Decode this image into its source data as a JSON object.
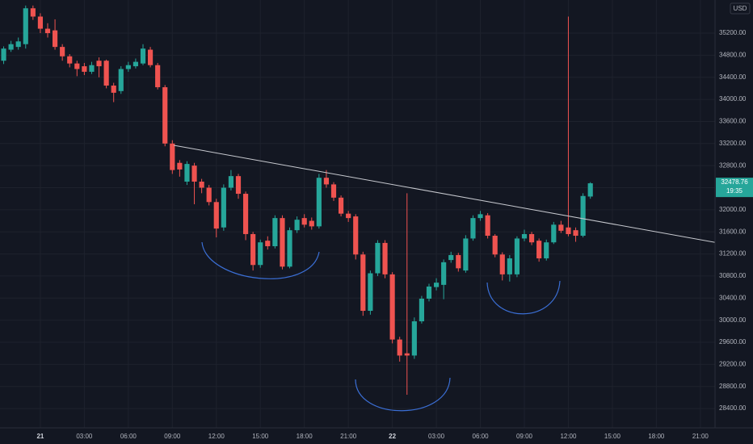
{
  "chart_data": {
    "type": "candlestick",
    "currency": "USD",
    "last_price": 32478.76,
    "countdown": "19:35",
    "x": [
      -2.5,
      -2,
      -1.5,
      -1,
      -0.5,
      0,
      0.5,
      1,
      1.5,
      2,
      2.5,
      3,
      3.5,
      4,
      4.5,
      5,
      5.5,
      6,
      6.5,
      7,
      7.5,
      8,
      8.5,
      9,
      9.5,
      10,
      10.5,
      11,
      11.5,
      12,
      12.5,
      13,
      13.5,
      14,
      14.5,
      15,
      15.5,
      16,
      16.5,
      17,
      17.5,
      18,
      18.5,
      19,
      19.5,
      20,
      20.5,
      21,
      21.5,
      22,
      22.5,
      23,
      23.5,
      24,
      24.5,
      25,
      25.5,
      26,
      26.5,
      27,
      27.5,
      28,
      28.5,
      29,
      29.5,
      30,
      30.5,
      31,
      31.5,
      32,
      32.5,
      33,
      33.5,
      34,
      34.5,
      35,
      35.5,
      36,
      36.5,
      37,
      37.5
    ],
    "open": [
      34700,
      34900,
      34950,
      35000,
      35650,
      35500,
      35280,
      35250,
      34950,
      34780,
      34650,
      34600,
      34500,
      34700,
      34700,
      34250,
      34150,
      34550,
      34600,
      34650,
      34900,
      34620,
      34220,
      33200,
      32850,
      32510,
      32800,
      32510,
      32400,
      32140,
      31680,
      32400,
      32610,
      32290,
      31560,
      31000,
      31440,
      31340,
      31850,
      30970,
      31630,
      31850,
      31800,
      31700,
      32580,
      32460,
      32220,
      31930,
      31880,
      31190,
      30170,
      30850,
      31400,
      30830,
      29650,
      29400,
      29360,
      29980,
      30390,
      30600,
      30640,
      31090,
      31180,
      30900,
      31480,
      31850,
      31900,
      31530,
      31190,
      30830,
      30830,
      31480,
      31560,
      31440,
      31120,
      31410,
      31730,
      31680,
      31630,
      31530,
      32240
    ],
    "high": [
      34960,
      35060,
      35120,
      35700,
      35700,
      35560,
      35380,
      35450,
      35000,
      34820,
      34700,
      34660,
      34680,
      34760,
      34720,
      34300,
      34600,
      34680,
      34740,
      35000,
      34950,
      34660,
      34260,
      33260,
      32900,
      32880,
      32850,
      32560,
      32450,
      32200,
      32460,
      32720,
      32650,
      32330,
      31600,
      31460,
      31520,
      31900,
      31900,
      31680,
      31880,
      31920,
      31860,
      32650,
      32720,
      32500,
      32260,
      31980,
      31920,
      31240,
      30900,
      31450,
      31450,
      30870,
      29700,
      32300,
      30050,
      30440,
      30660,
      30760,
      31100,
      31240,
      31220,
      31540,
      31900,
      31980,
      31940,
      31560,
      31230,
      31180,
      31520,
      31640,
      31600,
      31480,
      31460,
      31780,
      31800,
      35500,
      31680,
      32300,
      32500
    ],
    "low": [
      34640,
      34860,
      34900,
      34920,
      35440,
      35200,
      35120,
      34900,
      34700,
      34580,
      34420,
      34440,
      34460,
      34400,
      34200,
      33950,
      34100,
      34500,
      34560,
      34620,
      34580,
      34180,
      33150,
      32650,
      32600,
      32450,
      32100,
      32300,
      32080,
      31500,
      31620,
      32350,
      32200,
      31450,
      30900,
      30950,
      31280,
      31300,
      30920,
      30940,
      31580,
      31680,
      31640,
      31660,
      32400,
      32160,
      31880,
      31780,
      31100,
      30080,
      30100,
      30800,
      30760,
      29580,
      29250,
      28650,
      29300,
      29940,
      30340,
      30540,
      30380,
      31040,
      30880,
      30860,
      31440,
      31800,
      31480,
      31140,
      30720,
      30700,
      30780,
      31430,
      31360,
      31060,
      31080,
      31380,
      31580,
      31520,
      31420,
      31500,
      32200
    ],
    "close": [
      34920,
      35000,
      35050,
      35650,
      35500,
      35280,
      35200,
      34950,
      34780,
      34650,
      34550,
      34500,
      34620,
      34600,
      34250,
      34120,
      34550,
      34620,
      34680,
      34920,
      34620,
      34220,
      33200,
      32720,
      32730,
      32830,
      32510,
      32400,
      32140,
      31660,
      32400,
      32610,
      32290,
      31560,
      31000,
      31410,
      31340,
      31850,
      30970,
      31630,
      31820,
      31730,
      31700,
      32580,
      32460,
      32220,
      31930,
      31850,
      31190,
      30170,
      30850,
      31400,
      30830,
      29650,
      29360,
      29360,
      29980,
      30390,
      30610,
      30680,
      31050,
      31180,
      30940,
      31480,
      31850,
      31920,
      31530,
      31190,
      30830,
      31120,
      31480,
      31560,
      31410,
      31120,
      31410,
      31730,
      31620,
      31560,
      31530,
      32250,
      32480
    ],
    "up_color": "#26a69a",
    "down_color": "#ef5350",
    "grid": true,
    "xlim": [
      -2.75,
      46
    ],
    "ylim": [
      28050,
      35800
    ],
    "xticks": [
      {
        "value": 0,
        "label": "21"
      },
      {
        "value": 3,
        "label": "03:00"
      },
      {
        "value": 6,
        "label": "06:00"
      },
      {
        "value": 9,
        "label": "09:00"
      },
      {
        "value": 12,
        "label": "12:00"
      },
      {
        "value": 15,
        "label": "15:00"
      },
      {
        "value": 18,
        "label": "18:00"
      },
      {
        "value": 21,
        "label": "21:00"
      },
      {
        "value": 24,
        "label": "22"
      },
      {
        "value": 27,
        "label": "03:00"
      },
      {
        "value": 30,
        "label": "06:00"
      },
      {
        "value": 33,
        "label": "09:00"
      },
      {
        "value": 36,
        "label": "12:00"
      },
      {
        "value": 39,
        "label": "15:00"
      },
      {
        "value": 42,
        "label": "18:00"
      },
      {
        "value": 45,
        "label": "21:00"
      }
    ],
    "yticks": [
      {
        "value": 28400,
        "label": "28400.00"
      },
      {
        "value": 28800,
        "label": "28800.00"
      },
      {
        "value": 29200,
        "label": "29200.00"
      },
      {
        "value": 29600,
        "label": "29600.00"
      },
      {
        "value": 30000,
        "label": "30000.00"
      },
      {
        "value": 30400,
        "label": "30400.00"
      },
      {
        "value": 30800,
        "label": "30800.00"
      },
      {
        "value": 31200,
        "label": "31200.00"
      },
      {
        "value": 31600,
        "label": "31600.00"
      },
      {
        "value": 32000,
        "label": "32000.00"
      },
      {
        "value": 32400,
        "label": "32400.00"
      },
      {
        "value": 32800,
        "label": "32800.00"
      },
      {
        "value": 33200,
        "label": "33200.00"
      },
      {
        "value": 33600,
        "label": "33600.00"
      },
      {
        "value": 34000,
        "label": "34000.00"
      },
      {
        "value": 34400,
        "label": "34400.00"
      },
      {
        "value": 34800,
        "label": "34800.00"
      },
      {
        "value": 35200,
        "label": "35200.00"
      }
    ]
  }
}
